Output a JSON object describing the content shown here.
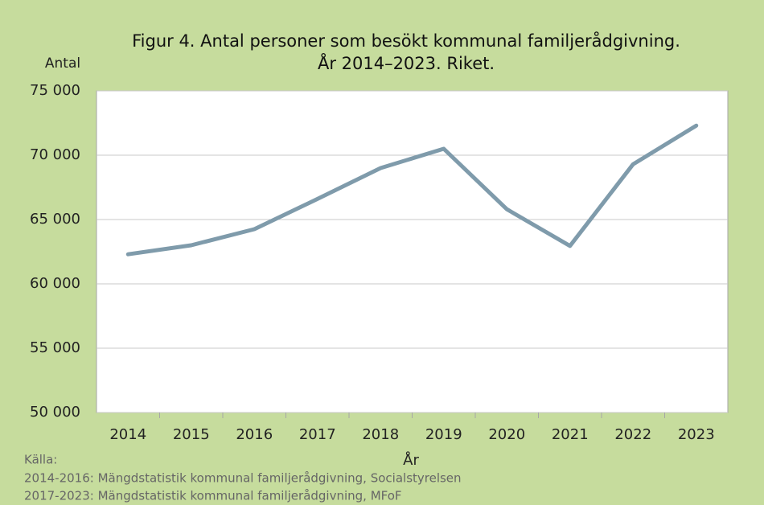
{
  "chart_data": {
    "type": "line",
    "title": [
      "Figur 4. Antal personer som besökt kommunal familjerådgivning.",
      "År 2014–2023. Riket."
    ],
    "y_label": "Antal",
    "x_label": "År",
    "source": [
      "Källa:",
      "2014-2016: Mängdstatistik kommunal familjerådgivning, Socialstyrelsen",
      "2017-2023: Mängdstatistik kommunal familjerådgivning, MFoF"
    ],
    "categories": [
      "2014",
      "2015",
      "2016",
      "2017",
      "2018",
      "2019",
      "2020",
      "2021",
      "2022",
      "2023"
    ],
    "series": [
      {
        "name": "Antal",
        "color": "#7f9bab",
        "values": [
          62300,
          63000,
          64250,
          66600,
          69000,
          70500,
          65800,
          62950,
          69300,
          72300
        ]
      }
    ],
    "ylim": [
      50000,
      75000
    ],
    "yticks": [
      {
        "value": 50000,
        "label": "50 000"
      },
      {
        "value": 55000,
        "label": "55 000"
      },
      {
        "value": 60000,
        "label": "60 000"
      },
      {
        "value": 65000,
        "label": "65 000"
      },
      {
        "value": 70000,
        "label": "70 000"
      },
      {
        "value": 75000,
        "label": "75 000"
      }
    ],
    "grid": true
  }
}
